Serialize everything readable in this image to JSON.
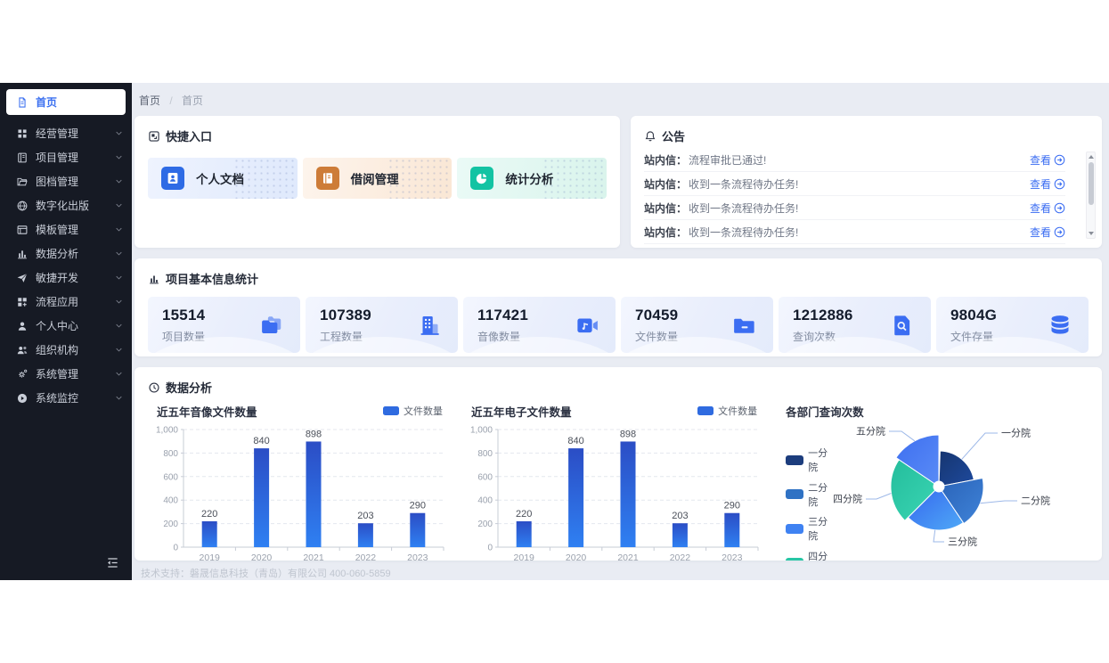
{
  "page": {
    "footer": "技术支持：磐晟信息科技（青岛）有限公司    400-060-5859"
  },
  "colors": {
    "accent": "#3b6df2",
    "sidebar_bg": "#161a24",
    "content_bg": "#e9ecf3",
    "bar_fill_top": "#2b4dc5",
    "bar_fill_bottom": "#2f80f2"
  },
  "breadcrumb": {
    "items": [
      "首页",
      "首页"
    ],
    "separator": "/"
  },
  "sidebar": {
    "items": [
      {
        "id": "home",
        "label": "首页",
        "icon": "doc-icon",
        "active": true
      },
      {
        "id": "business-mgmt",
        "label": "经营管理",
        "icon": "grid-icon"
      },
      {
        "id": "project-mgmt",
        "label": "项目管理",
        "icon": "notebook-icon"
      },
      {
        "id": "archive-mgmt",
        "label": "图档管理",
        "icon": "folder-open-icon"
      },
      {
        "id": "digital-publishing",
        "label": "数字化出版",
        "icon": "globe-icon"
      },
      {
        "id": "template-mgmt",
        "label": "模板管理",
        "icon": "template-icon"
      },
      {
        "id": "data-analysis",
        "label": "数据分析",
        "icon": "bars-icon"
      },
      {
        "id": "agile-dev",
        "label": "敏捷开发",
        "icon": "send-icon"
      },
      {
        "id": "workflow-apps",
        "label": "流程应用",
        "icon": "blocks-icon"
      },
      {
        "id": "personal-center",
        "label": "个人中心",
        "icon": "user-icon"
      },
      {
        "id": "organization",
        "label": "组织机构",
        "icon": "users-icon"
      },
      {
        "id": "system-mgmt",
        "label": "系统管理",
        "icon": "gear-icon"
      },
      {
        "id": "system-monitor",
        "label": "系统监控",
        "icon": "play-circle-icon"
      }
    ]
  },
  "quick_entry": {
    "title": "快捷入口",
    "items": [
      {
        "id": "personal-docs",
        "label": "个人文档",
        "icon": "person-doc-icon",
        "badge_color": "#2e6be5",
        "tint_from": "#eef3fe",
        "tint_to": "#dfe9fc"
      },
      {
        "id": "borrow-mgmt",
        "label": "借阅管理",
        "icon": "book-icon",
        "badge_color": "#cd7c38",
        "tint_from": "#fdf4ec",
        "tint_to": "#fae7d5"
      },
      {
        "id": "stats-analysis",
        "label": "统计分析",
        "icon": "pie-chart-icon",
        "badge_color": "#13c3a3",
        "tint_from": "#eafaf6",
        "tint_to": "#d9f4ec"
      }
    ]
  },
  "announcements": {
    "title": "公告",
    "view_label": "查看",
    "items": [
      {
        "prefix": "站内信：",
        "text": "流程审批已通过!"
      },
      {
        "prefix": "站内信：",
        "text": "收到一条流程待办任务!"
      },
      {
        "prefix": "站内信：",
        "text": "收到一条流程待办任务!"
      },
      {
        "prefix": "站内信：",
        "text": "收到一条流程待办任务!"
      }
    ]
  },
  "stats": {
    "title": "项目基本信息统计",
    "cards": [
      {
        "value": "15514",
        "label": "项目数量",
        "icon": "folders-icon"
      },
      {
        "value": "107389",
        "label": "工程数量",
        "icon": "building-icon"
      },
      {
        "value": "117421",
        "label": "音像数量",
        "icon": "video-icon"
      },
      {
        "value": "70459",
        "label": "文件数量",
        "icon": "folder-icon"
      },
      {
        "value": "1212886",
        "label": "查询次数",
        "icon": "file-search-icon"
      },
      {
        "value": "9804G",
        "label": "文件存量",
        "icon": "database-icon"
      }
    ]
  },
  "analysis": {
    "title": "数据分析"
  },
  "chart_data": [
    {
      "type": "bar",
      "name": "audio-files-bar-chart",
      "title": "近五年音像文件数量",
      "legend": [
        {
          "label": "文件数量",
          "color": "#2f6be0"
        }
      ],
      "categories": [
        "2019",
        "2020",
        "2021",
        "2022",
        "2023"
      ],
      "values": [
        220,
        840,
        898,
        203,
        290
      ],
      "xlabel": "",
      "ylabel": "",
      "ylim": [
        0,
        1000
      ],
      "yticks": [
        0,
        200,
        400,
        600,
        800,
        1000
      ],
      "grid": "horizontal-dashed",
      "legend_position": "top-right"
    },
    {
      "type": "bar",
      "name": "electronic-files-bar-chart",
      "title": "近五年电子文件数量",
      "legend": [
        {
          "label": "文件数量",
          "color": "#2f6be0"
        }
      ],
      "categories": [
        "2019",
        "2020",
        "2021",
        "2022",
        "2023"
      ],
      "values": [
        220,
        840,
        898,
        203,
        290
      ],
      "xlabel": "",
      "ylabel": "",
      "ylim": [
        0,
        1000
      ],
      "yticks": [
        0,
        200,
        400,
        600,
        800,
        1000
      ],
      "grid": "horizontal-dashed",
      "legend_position": "top-right"
    },
    {
      "type": "pie",
      "variant": "rose",
      "name": "department-queries-rose-chart",
      "title": "各部门查询次数",
      "legend_position": "left",
      "segments": [
        {
          "name": "一分院",
          "value": 20,
          "start": 2,
          "end": 79,
          "radius": 40,
          "color": "#16356f",
          "color2": "#1e4a9e",
          "legend_color": "#1c3d7d"
        },
        {
          "name": "二分院",
          "value": 18,
          "start": 79,
          "end": 146,
          "radius": 50,
          "color": "#2a63b8",
          "color2": "#3f83d8",
          "legend_color": "#2f72c4"
        },
        {
          "name": "三分院",
          "value": 21,
          "start": 146,
          "end": 225,
          "radius": 49,
          "color": "#3566ee",
          "color2": "#4fa9f7",
          "legend_color": "#3f82f2"
        },
        {
          "name": "四分院",
          "value": 21,
          "start": 225,
          "end": 304,
          "radius": 54,
          "color": "#24bd9c",
          "color2": "#3bd6b4",
          "legend_color": "#27c6a5"
        },
        {
          "name": "五分院",
          "value": 15,
          "start": 304,
          "end": 360,
          "radius": 58,
          "color": "#3e6ff0",
          "color2": "#5a8cf6",
          "legend_color": "#4077f0"
        }
      ],
      "center_hole_color": "#ffffff"
    }
  ]
}
